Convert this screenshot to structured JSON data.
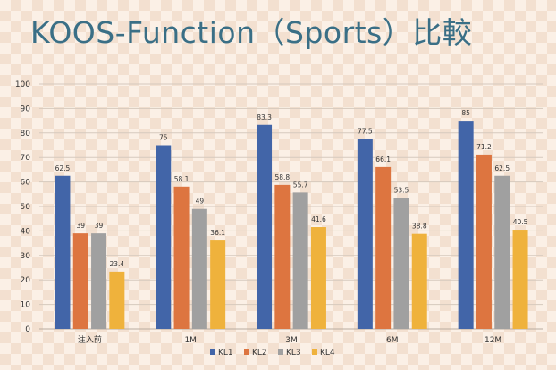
{
  "title": "KOOS-Function（Sports）比較",
  "chart_data": {
    "type": "bar",
    "title": "KOOS-Function（Sports）比較",
    "categories": [
      "注入前",
      "1M",
      "3M",
      "6M",
      "12M"
    ],
    "series": [
      {
        "name": "KL1",
        "values": [
          62.5,
          75,
          83.3,
          77.5,
          85
        ],
        "labels": [
          "62.5",
          "75",
          "83.3",
          "77.5",
          "85"
        ]
      },
      {
        "name": "KL2",
        "values": [
          39,
          58.1,
          58.8,
          66.1,
          71.2
        ],
        "labels": [
          "39",
          "58.1",
          "58.8",
          "66.1",
          "71.2"
        ]
      },
      {
        "name": "KL3",
        "values": [
          39,
          49,
          55.7,
          53.5,
          62.5
        ],
        "labels": [
          "39",
          "49",
          "55.7",
          "53.5",
          "62.5"
        ]
      },
      {
        "name": "KL4",
        "values": [
          23.4,
          36.1,
          41.6,
          38.8,
          40.5
        ],
        "labels": [
          "23.4",
          "36.1",
          "41.6",
          "38.8",
          "40.5"
        ]
      }
    ],
    "ylim": [
      0,
      100
    ],
    "yticks": [
      "0",
      "10",
      "20",
      "30",
      "40",
      "50",
      "60",
      "70",
      "80",
      "90",
      "100"
    ],
    "grid": true,
    "legend": "bottom",
    "colors": [
      "#4265a8",
      "#dd7540",
      "#a0a0a0",
      "#efb23c"
    ]
  }
}
